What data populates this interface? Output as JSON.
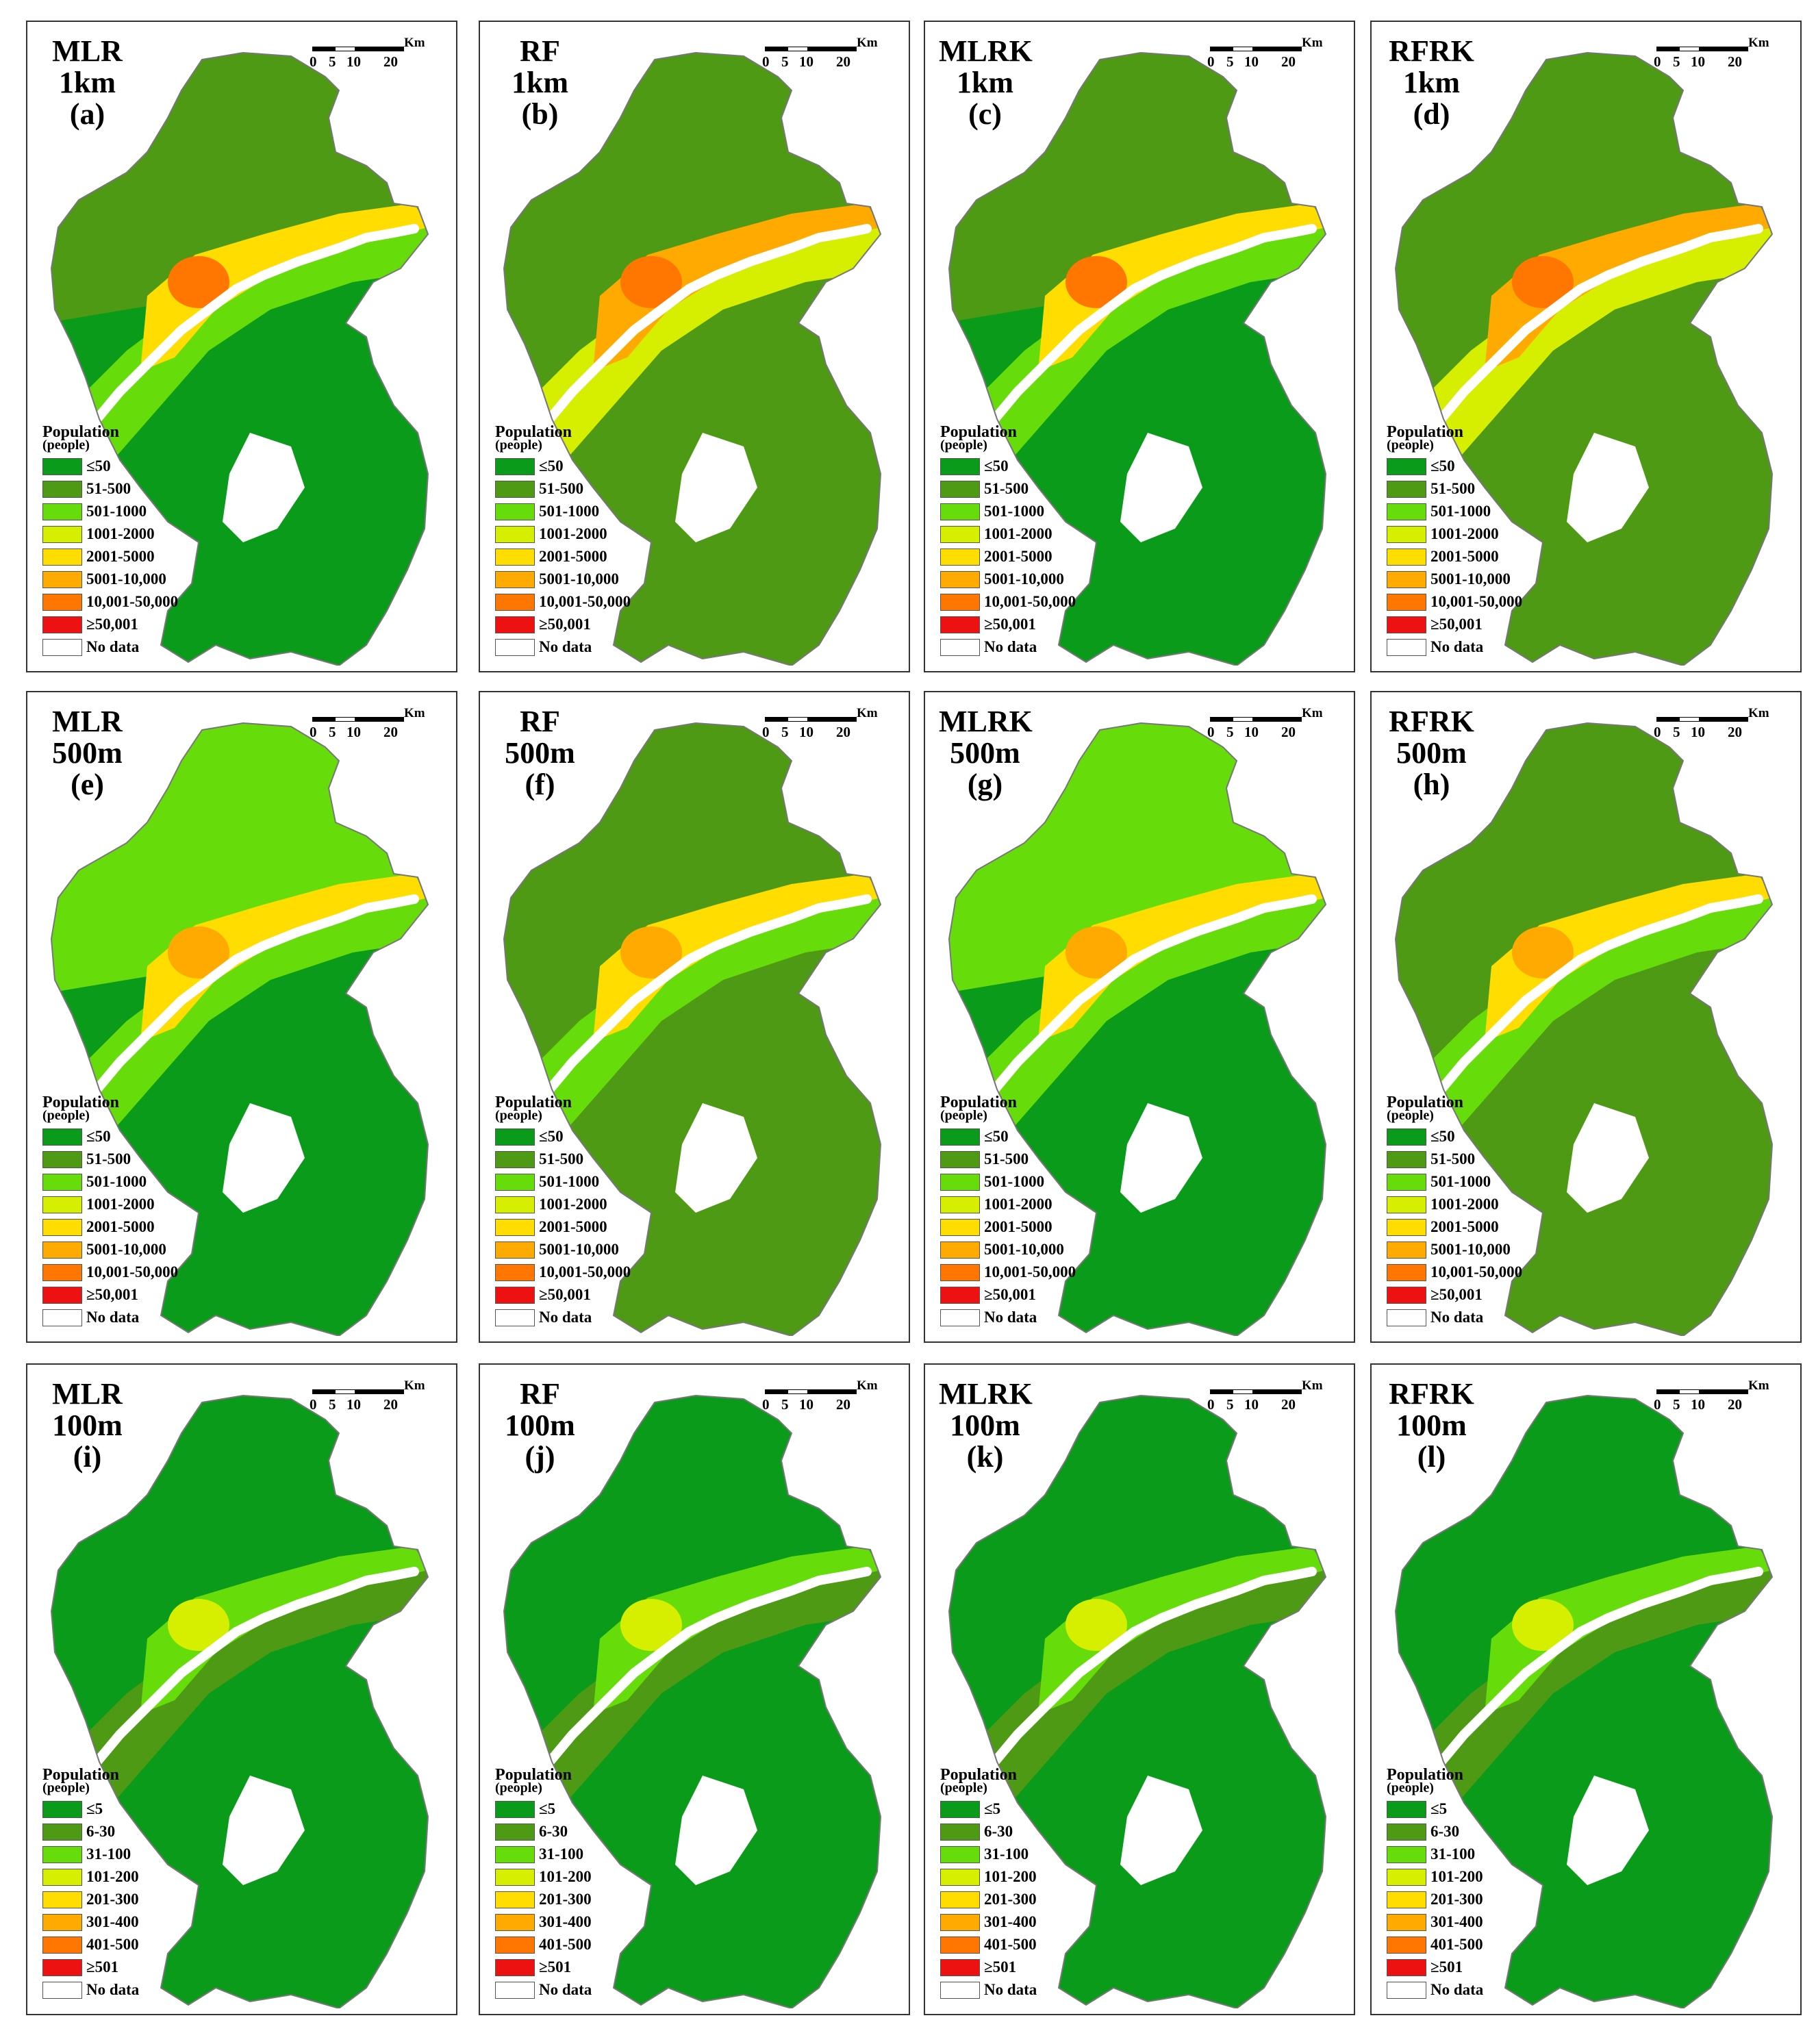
{
  "scalebar": {
    "unit": "Km",
    "ticks": [
      "0",
      "5",
      "10",
      "20"
    ]
  },
  "legend": {
    "title": "Population",
    "unit": "(people)",
    "coarse_classes": [
      {
        "label": "≤50",
        "color": "#0a9b1a"
      },
      {
        "label": "51-500",
        "color": "#4f9a14"
      },
      {
        "label": "501-1000",
        "color": "#66dd0a"
      },
      {
        "label": "1001-2000",
        "color": "#d6ee00"
      },
      {
        "label": "2001-5000",
        "color": "#ffdd00"
      },
      {
        "label": "5001-10,000",
        "color": "#ffaa00"
      },
      {
        "label": "10,001-50,000",
        "color": "#ff7700"
      },
      {
        "label": "≥50,001",
        "color": "#ee1111"
      },
      {
        "label": "No data",
        "color": "#ffffff"
      }
    ],
    "fine_classes": [
      {
        "label": "≤5",
        "color": "#0a9b1a"
      },
      {
        "label": "6-30",
        "color": "#4f9a14"
      },
      {
        "label": "31-100",
        "color": "#66dd0a"
      },
      {
        "label": "101-200",
        "color": "#d6ee00"
      },
      {
        "label": "201-300",
        "color": "#ffdd00"
      },
      {
        "label": "301-400",
        "color": "#ffaa00"
      },
      {
        "label": "401-500",
        "color": "#ff7700"
      },
      {
        "label": "≥501",
        "color": "#ee1111"
      },
      {
        "label": "No data",
        "color": "#ffffff"
      }
    ]
  },
  "panels": [
    {
      "method": "MLR",
      "resolution": "1km",
      "letter": "(a)",
      "legend": "coarse",
      "palette": [
        "#4f9a14",
        "#66dd0a",
        "#ffdd00",
        "#ff7700",
        "#0a9b1a"
      ]
    },
    {
      "method": "RF",
      "resolution": "1km",
      "letter": "(b)",
      "legend": "coarse",
      "palette": [
        "#4f9a14",
        "#d6ee00",
        "#ffaa00",
        "#ff7700",
        "#4f9a14"
      ]
    },
    {
      "method": "MLRK",
      "resolution": "1km",
      "letter": "(c)",
      "legend": "coarse",
      "palette": [
        "#4f9a14",
        "#66dd0a",
        "#ffdd00",
        "#ff7700",
        "#0a9b1a"
      ]
    },
    {
      "method": "RFRK",
      "resolution": "1km",
      "letter": "(d)",
      "legend": "coarse",
      "palette": [
        "#4f9a14",
        "#d6ee00",
        "#ffaa00",
        "#ff7700",
        "#4f9a14"
      ]
    },
    {
      "method": "MLR",
      "resolution": "500m",
      "letter": "(e)",
      "legend": "coarse",
      "palette": [
        "#66dd0a",
        "#66dd0a",
        "#ffdd00",
        "#ffaa00",
        "#0a9b1a"
      ]
    },
    {
      "method": "RF",
      "resolution": "500m",
      "letter": "(f)",
      "legend": "coarse",
      "palette": [
        "#4f9a14",
        "#66dd0a",
        "#ffdd00",
        "#ffaa00",
        "#4f9a14"
      ]
    },
    {
      "method": "MLRK",
      "resolution": "500m",
      "letter": "(g)",
      "legend": "coarse",
      "palette": [
        "#66dd0a",
        "#66dd0a",
        "#ffdd00",
        "#ffaa00",
        "#0a9b1a"
      ]
    },
    {
      "method": "RFRK",
      "resolution": "500m",
      "letter": "(h)",
      "legend": "coarse",
      "palette": [
        "#4f9a14",
        "#66dd0a",
        "#ffdd00",
        "#ffaa00",
        "#4f9a14"
      ]
    },
    {
      "method": "MLR",
      "resolution": "100m",
      "letter": "(i)",
      "legend": "fine",
      "palette": [
        "#0a9b1a",
        "#4f9a14",
        "#66dd0a",
        "#d6ee00",
        "#0a9b1a"
      ]
    },
    {
      "method": "RF",
      "resolution": "100m",
      "letter": "(j)",
      "legend": "fine",
      "palette": [
        "#0a9b1a",
        "#4f9a14",
        "#66dd0a",
        "#d6ee00",
        "#0a9b1a"
      ]
    },
    {
      "method": "MLRK",
      "resolution": "100m",
      "letter": "(k)",
      "legend": "fine",
      "palette": [
        "#0a9b1a",
        "#4f9a14",
        "#66dd0a",
        "#d6ee00",
        "#0a9b1a"
      ]
    },
    {
      "method": "RFRK",
      "resolution": "100m",
      "letter": "(l)",
      "legend": "fine",
      "palette": [
        "#0a9b1a",
        "#4f9a14",
        "#66dd0a",
        "#d6ee00",
        "#0a9b1a"
      ]
    }
  ]
}
